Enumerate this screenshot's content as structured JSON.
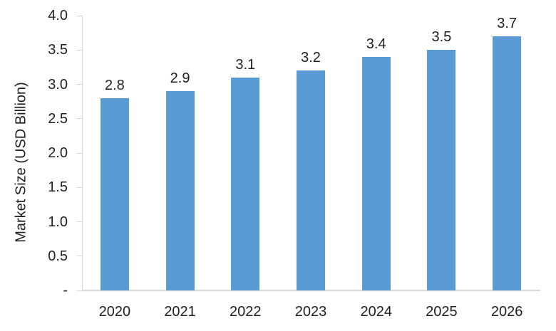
{
  "chart_data": {
    "type": "bar",
    "title": "",
    "categories": [
      "2020",
      "2021",
      "2022",
      "2023",
      "2024",
      "2025",
      "2026"
    ],
    "values": [
      2.8,
      2.9,
      3.1,
      3.2,
      3.4,
      3.5,
      3.7
    ],
    "data_labels": [
      "2.8",
      "2.9",
      "3.1",
      "3.2",
      "3.4",
      "3.5",
      "3.7"
    ],
    "xlabel": "",
    "ylabel": "Market Size (USD Billion)",
    "ylim": [
      0,
      4.0
    ],
    "ytick_interval": 0.5,
    "ytick_values": [
      0,
      0.5,
      1.0,
      1.5,
      2.0,
      2.5,
      3.0,
      3.5,
      4.0
    ],
    "ytick_labels": [
      "-",
      "0.5",
      "1.0",
      "1.5",
      "2.0",
      "2.5",
      "3.0",
      "3.5",
      "4.0"
    ],
    "grid": false,
    "legend": "none",
    "colors": {
      "bar_fill": "#5b9bd5",
      "axis_line": "#d9d9d9",
      "text": "#1f1f1f",
      "background": "#ffffff"
    }
  }
}
